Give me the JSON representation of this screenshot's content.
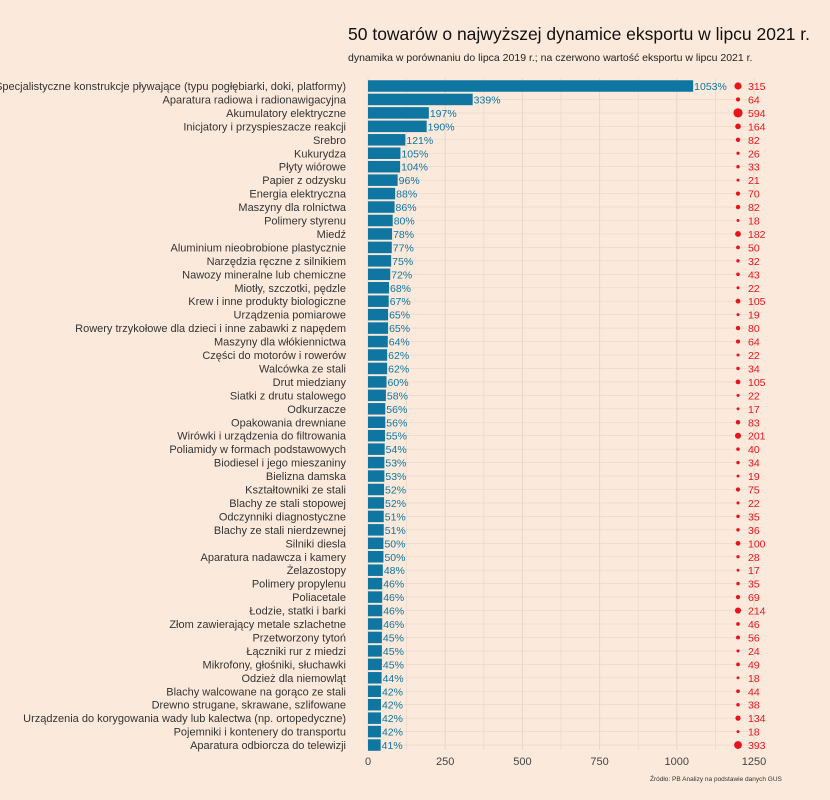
{
  "chart_data": {
    "type": "bar",
    "orientation": "horizontal",
    "title": "50 towarów o najwyższej dynamice eksportu w lipcu 2021 r.",
    "subtitle": "dynamika w porównaniu do lipca 2019 r.; na czerwono wartość eksportu w lipcu 2021 r.",
    "source": "Źródło: PB Analizy na podstawie danych GUS",
    "xlim": [
      0,
      1250
    ],
    "x_ticks": [
      0,
      250,
      500,
      750,
      1000,
      1250
    ],
    "grid": true,
    "categories": [
      "Specjalistyczne konstrukcje pływające (typu pogłębiarki, doki, platformy)",
      "Aparatura radiowa i radionawigacyjna",
      "Akumulatory elektryczne",
      "Inicjatory i przyspieszacze reakcji",
      "Srebro",
      "Kukurydza",
      "Płyty wiórowe",
      "Papier z odzysku",
      "Energia elektryczna",
      "Maszyny dla rolnictwa",
      "Polimery styrenu",
      "Miedź",
      "Aluminium nieobrobione plastycznie",
      "Narzędzia ręczne z silnikiem",
      "Nawozy mineralne lub chemiczne",
      "Miotły, szczotki, pędzle",
      "Krew i inne produkty biologiczne",
      "Urządzenia pomiarowe",
      "Rowery trzykołowe dla dzieci i inne zabawki z napędem",
      "Maszyny dla włókiennictwa",
      "Części do motorów i rowerów",
      "Walcówka ze stali",
      "Drut miedziany",
      "Siatki z drutu stalowego",
      "Odkurzacze",
      "Opakowania drewniane",
      "Wirówki i urządzenia do filtrowania",
      "Poliamidy w formach podstawowych",
      "Biodiesel i jego mieszaniny",
      "Bielizna damska",
      "Kształtowniki ze stali",
      "Blachy ze stali stopowej",
      "Odczynniki diagnostyczne",
      "Blachy ze stali nierdzewnej",
      "Silniki diesla",
      "Aparatura nadawcza i kamery",
      "Żelazostopy",
      "Polimery propylenu",
      "Poliacetale",
      "Łodzie, statki i barki",
      "Złom zawierający metale szlachetne",
      "Przetworzony tytoń",
      "Łączniki rur z miedzi",
      "Mikrofony, głośniki, słuchawki",
      "Odzież dla niemowląt",
      "Blachy walcowane na gorąco ze stali",
      "Drewno strugane, skrawane, szlifowane",
      "Urządzenia do korygowania wady lub kalectwa (np. ortopedyczne)",
      "Pojemniki i kontenery do transportu",
      "Aparatura odbiorcza do telewizji"
    ],
    "series": [
      {
        "values": [
          1053,
          339,
          197,
          190,
          121,
          105,
          104,
          96,
          88,
          86,
          80,
          78,
          77,
          75,
          72,
          68,
          67,
          65,
          65,
          64,
          62,
          62,
          60,
          58,
          56,
          56,
          55,
          54,
          53,
          53,
          52,
          52,
          51,
          51,
          50,
          50,
          48,
          46,
          46,
          46,
          46,
          45,
          45,
          45,
          44,
          42,
          42,
          42,
          42,
          41
        ],
        "label_suffix": "%",
        "color": "#0e76a0"
      },
      {
        "values": [
          315,
          64,
          594,
          164,
          82,
          26,
          33,
          21,
          70,
          82,
          18,
          182,
          50,
          32,
          43,
          22,
          105,
          19,
          80,
          64,
          22,
          34,
          105,
          22,
          17,
          83,
          201,
          40,
          34,
          19,
          75,
          22,
          35,
          36,
          100,
          28,
          17,
          35,
          69,
          214,
          46,
          56,
          24,
          49,
          18,
          44,
          38,
          134,
          18,
          393
        ],
        "marker": "dot-sized",
        "color": "#e8141c"
      }
    ],
    "colors": {
      "background": "#fbeadc",
      "bar": "#0e76a0",
      "bar_label": "#0e76a0",
      "dot": "#e8141c",
      "dot_label": "#e8141c",
      "grid": "#e8d6c8"
    }
  }
}
